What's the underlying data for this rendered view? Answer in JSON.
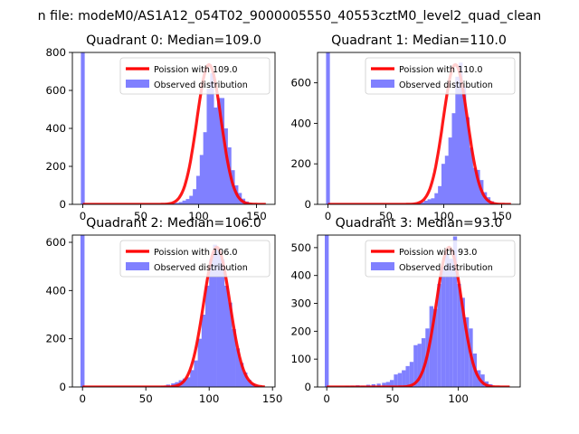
{
  "suptitle": "n file: modeM0/AS1A12_054T02_9000005550_40553cztM0_level2_quad_clean",
  "legend_labels": {
    "poisson_prefix": "Poission with ",
    "observed": "Observed distribution"
  },
  "colors": {
    "hist": "#8080ff",
    "curve": "#ff0000",
    "axis": "#000000"
  },
  "chart_data": [
    {
      "type": "bar",
      "title": "Quadrant 0: Median=109.0",
      "median": 109.0,
      "poisson_label": "Poission with 109.0",
      "xlim": [
        -9,
        166
      ],
      "ylim": [
        0,
        800
      ],
      "xticks": [
        0,
        50,
        100,
        150
      ],
      "yticks": [
        0,
        200,
        400,
        600,
        800
      ],
      "bin_width": 3.3,
      "zero_bin_count": 1000,
      "bins": [
        [
          74,
          3
        ],
        [
          77,
          5
        ],
        [
          80,
          8
        ],
        [
          83,
          12
        ],
        [
          86,
          20
        ],
        [
          89,
          28
        ],
        [
          92,
          45
        ],
        [
          95,
          80
        ],
        [
          98,
          150
        ],
        [
          101,
          260
        ],
        [
          104,
          380
        ],
        [
          107,
          610
        ],
        [
          110,
          690
        ],
        [
          113,
          510
        ],
        [
          116,
          560
        ],
        [
          119,
          560
        ],
        [
          122,
          400
        ],
        [
          125,
          300
        ],
        [
          128,
          180
        ],
        [
          131,
          100
        ],
        [
          134,
          60
        ],
        [
          137,
          30
        ],
        [
          140,
          15
        ],
        [
          143,
          6
        ],
        [
          146,
          2
        ]
      ],
      "legend": "top-right"
    },
    {
      "type": "bar",
      "title": "Quadrant 1: Median=110.0",
      "median": 110.0,
      "poisson_label": "Poission with 110.0",
      "xlim": [
        -9,
        166
      ],
      "ylim": [
        0,
        750
      ],
      "xticks": [
        0,
        50,
        100,
        150
      ],
      "yticks": [
        0,
        200,
        400,
        600
      ],
      "bin_width": 3.3,
      "zero_bin_count": 1000,
      "bins": [
        [
          74,
          3
        ],
        [
          77,
          5
        ],
        [
          80,
          10
        ],
        [
          83,
          18
        ],
        [
          86,
          25
        ],
        [
          89,
          30
        ],
        [
          92,
          55
        ],
        [
          95,
          90
        ],
        [
          98,
          200
        ],
        [
          101,
          240
        ],
        [
          104,
          330
        ],
        [
          107,
          450
        ],
        [
          110,
          630
        ],
        [
          113,
          700
        ],
        [
          116,
          580
        ],
        [
          119,
          430
        ],
        [
          122,
          280
        ],
        [
          125,
          180
        ],
        [
          128,
          170
        ],
        [
          131,
          120
        ],
        [
          134,
          60
        ],
        [
          137,
          35
        ],
        [
          140,
          15
        ],
        [
          143,
          6
        ],
        [
          146,
          2
        ]
      ],
      "legend": "top-right"
    },
    {
      "type": "bar",
      "title": "Quadrant 2: Median=106.0",
      "median": 106.0,
      "poisson_label": "Poission with 106.0",
      "xlim": [
        -8,
        152
      ],
      "ylim": [
        0,
        630
      ],
      "xticks": [
        0,
        50,
        100,
        150
      ],
      "yticks": [
        0,
        200,
        400,
        600
      ],
      "bin_width": 3.2,
      "zero_bin_count": 1000,
      "bins": [
        [
          62,
          5
        ],
        [
          66,
          10
        ],
        [
          70,
          15
        ],
        [
          73,
          20
        ],
        [
          76,
          28
        ],
        [
          79,
          35
        ],
        [
          82,
          40
        ],
        [
          85,
          70
        ],
        [
          88,
          110
        ],
        [
          91,
          200
        ],
        [
          94,
          300
        ],
        [
          97,
          420
        ],
        [
          100,
          530
        ],
        [
          103,
          590
        ],
        [
          106,
          570
        ],
        [
          109,
          530
        ],
        [
          112,
          420
        ],
        [
          115,
          350
        ],
        [
          118,
          240
        ],
        [
          121,
          160
        ],
        [
          124,
          100
        ],
        [
          127,
          60
        ],
        [
          130,
          30
        ],
        [
          133,
          15
        ],
        [
          136,
          5
        ]
      ],
      "legend": "top-right"
    },
    {
      "type": "bar",
      "title": "Quadrant 3: Median=93.0",
      "median": 93.0,
      "poisson_label": "Poission with 93.0",
      "xlim": [
        -7,
        147
      ],
      "ylim": [
        0,
        545
      ],
      "xticks": [
        0,
        50,
        100
      ],
      "yticks": [
        0,
        100,
        200,
        300,
        400,
        500
      ],
      "bin_width": 3.0,
      "zero_bin_count": 1000,
      "bins": [
        [
          14,
          4
        ],
        [
          18,
          5
        ],
        [
          22,
          6
        ],
        [
          26,
          5
        ],
        [
          30,
          8
        ],
        [
          34,
          10
        ],
        [
          38,
          12
        ],
        [
          42,
          15
        ],
        [
          45,
          18
        ],
        [
          48,
          25
        ],
        [
          51,
          45
        ],
        [
          54,
          50
        ],
        [
          57,
          60
        ],
        [
          60,
          75
        ],
        [
          63,
          90
        ],
        [
          66,
          150
        ],
        [
          69,
          155
        ],
        [
          72,
          175
        ],
        [
          75,
          210
        ],
        [
          78,
          290
        ],
        [
          81,
          280
        ],
        [
          84,
          370
        ],
        [
          87,
          430
        ],
        [
          90,
          480
        ],
        [
          93,
          460
        ],
        [
          96,
          540
        ],
        [
          99,
          370
        ],
        [
          102,
          320
        ],
        [
          105,
          250
        ],
        [
          108,
          210
        ],
        [
          111,
          120
        ],
        [
          114,
          60
        ],
        [
          117,
          45
        ],
        [
          120,
          20
        ],
        [
          123,
          10
        ]
      ],
      "legend": "top-right"
    }
  ]
}
